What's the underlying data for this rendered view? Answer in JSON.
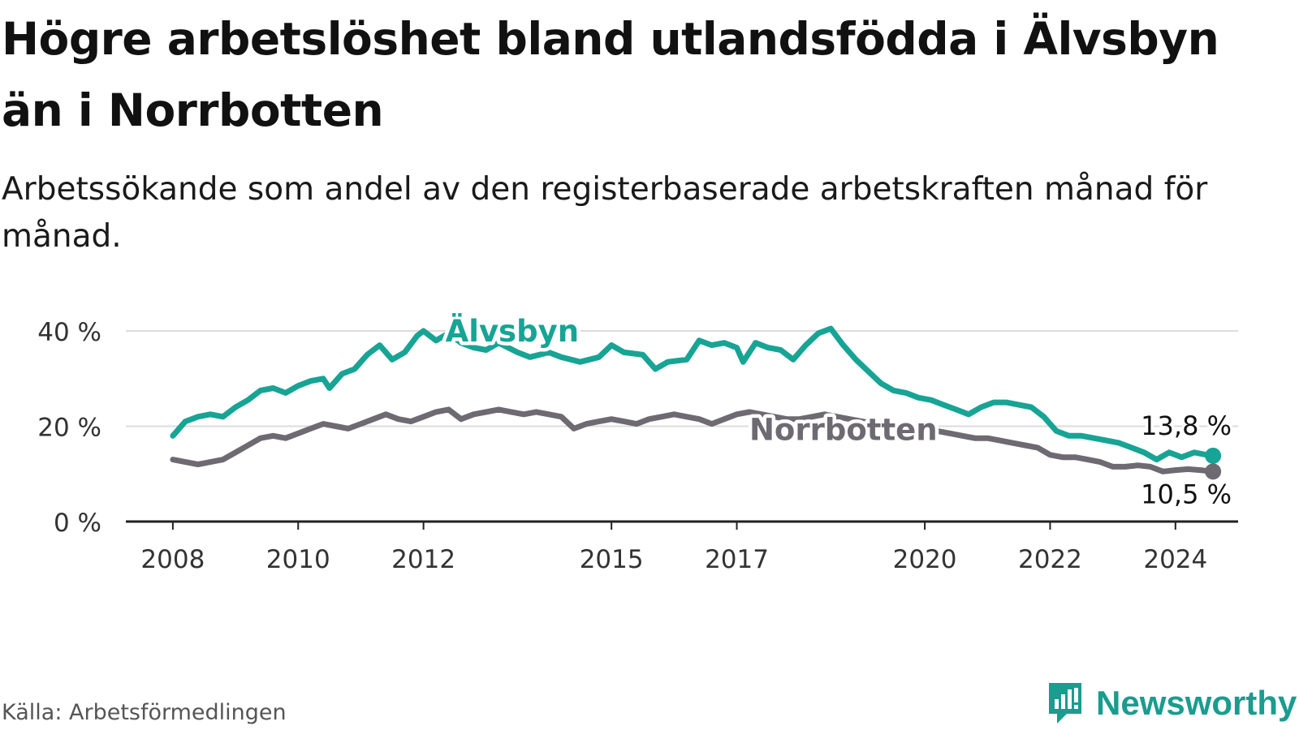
{
  "title": "Högre arbetslöshet bland utlandsfödda i Älvsbyn än i Norrbotten",
  "subtitle": "Arbetssökande som andel av den registerbaserade arbetskraften månad för månad.",
  "source": "Källa: Arbetsförmedlingen",
  "brand": "Newsworthy",
  "colors": {
    "alvsbyn": "#17a495",
    "norrbotten": "#6e6a72",
    "grid": "#dcdcdc",
    "axis": "#222222"
  },
  "chart_data": {
    "type": "line",
    "title": "Högre arbetslöshet bland utlandsfödda i Älvsbyn än i Norrbotten",
    "xlabel": "",
    "ylabel": "",
    "ylim": [
      0,
      40
    ],
    "xlim": [
      2007.25,
      2025.0
    ],
    "y_ticks": [
      0,
      20,
      40
    ],
    "y_tick_labels": [
      "0 %",
      "20 %",
      "40 %"
    ],
    "x_ticks": [
      2008,
      2010,
      2012,
      2015,
      2017,
      2020,
      2022,
      2024
    ],
    "x_tick_labels": [
      "2008",
      "2010",
      "2012",
      "2015",
      "2017",
      "2020",
      "2022",
      "2024"
    ],
    "grid": true,
    "series": [
      {
        "name": "Älvsbyn",
        "label": "Älvsbyn",
        "last_value_label": "13,8 %",
        "points": [
          [
            2008.0,
            18.0
          ],
          [
            2008.2,
            21.0
          ],
          [
            2008.4,
            22.0
          ],
          [
            2008.6,
            22.5
          ],
          [
            2008.8,
            22.0
          ],
          [
            2009.0,
            24.0
          ],
          [
            2009.2,
            25.5
          ],
          [
            2009.4,
            27.5
          ],
          [
            2009.6,
            28.0
          ],
          [
            2009.8,
            27.0
          ],
          [
            2010.0,
            28.5
          ],
          [
            2010.2,
            29.5
          ],
          [
            2010.4,
            30.0
          ],
          [
            2010.5,
            28.0
          ],
          [
            2010.7,
            31.0
          ],
          [
            2010.9,
            32.0
          ],
          [
            2011.1,
            35.0
          ],
          [
            2011.3,
            37.0
          ],
          [
            2011.5,
            34.0
          ],
          [
            2011.7,
            35.5
          ],
          [
            2011.9,
            39.0
          ],
          [
            2012.0,
            40.0
          ],
          [
            2012.2,
            38.0
          ],
          [
            2012.4,
            39.5
          ],
          [
            2012.6,
            37.5
          ],
          [
            2012.8,
            36.5
          ],
          [
            2013.0,
            36.0
          ],
          [
            2013.2,
            37.5
          ],
          [
            2013.5,
            35.5
          ],
          [
            2013.7,
            34.5
          ],
          [
            2014.0,
            35.5
          ],
          [
            2014.2,
            34.5
          ],
          [
            2014.5,
            33.5
          ],
          [
            2014.8,
            34.5
          ],
          [
            2015.0,
            37.0
          ],
          [
            2015.2,
            35.5
          ],
          [
            2015.5,
            35.0
          ],
          [
            2015.7,
            32.0
          ],
          [
            2015.9,
            33.5
          ],
          [
            2016.2,
            34.0
          ],
          [
            2016.4,
            38.0
          ],
          [
            2016.6,
            37.0
          ],
          [
            2016.8,
            37.5
          ],
          [
            2017.0,
            36.5
          ],
          [
            2017.1,
            33.5
          ],
          [
            2017.3,
            37.5
          ],
          [
            2017.5,
            36.5
          ],
          [
            2017.7,
            36.0
          ],
          [
            2017.9,
            34.0
          ],
          [
            2018.1,
            37.0
          ],
          [
            2018.3,
            39.5
          ],
          [
            2018.5,
            40.5
          ],
          [
            2018.7,
            37.0
          ],
          [
            2018.9,
            34.0
          ],
          [
            2019.1,
            31.5
          ],
          [
            2019.3,
            29.0
          ],
          [
            2019.5,
            27.5
          ],
          [
            2019.7,
            27.0
          ],
          [
            2019.9,
            26.0
          ],
          [
            2020.1,
            25.5
          ],
          [
            2020.3,
            24.5
          ],
          [
            2020.5,
            23.5
          ],
          [
            2020.7,
            22.5
          ],
          [
            2020.9,
            24.0
          ],
          [
            2021.1,
            25.0
          ],
          [
            2021.3,
            25.0
          ],
          [
            2021.5,
            24.5
          ],
          [
            2021.7,
            24.0
          ],
          [
            2021.9,
            22.0
          ],
          [
            2022.1,
            19.0
          ],
          [
            2022.3,
            18.0
          ],
          [
            2022.5,
            18.0
          ],
          [
            2022.7,
            17.5
          ],
          [
            2022.9,
            17.0
          ],
          [
            2023.1,
            16.5
          ],
          [
            2023.3,
            15.5
          ],
          [
            2023.5,
            14.5
          ],
          [
            2023.7,
            13.0
          ],
          [
            2023.9,
            14.5
          ],
          [
            2024.1,
            13.5
          ],
          [
            2024.3,
            14.5
          ],
          [
            2024.5,
            14.0
          ],
          [
            2024.6,
            13.8
          ]
        ]
      },
      {
        "name": "Norrbotten",
        "label": "Norrbotten",
        "last_value_label": "10,5 %",
        "points": [
          [
            2008.0,
            13.0
          ],
          [
            2008.2,
            12.5
          ],
          [
            2008.4,
            12.0
          ],
          [
            2008.6,
            12.5
          ],
          [
            2008.8,
            13.0
          ],
          [
            2009.0,
            14.5
          ],
          [
            2009.2,
            16.0
          ],
          [
            2009.4,
            17.5
          ],
          [
            2009.6,
            18.0
          ],
          [
            2009.8,
            17.5
          ],
          [
            2010.0,
            18.5
          ],
          [
            2010.2,
            19.5
          ],
          [
            2010.4,
            20.5
          ],
          [
            2010.6,
            20.0
          ],
          [
            2010.8,
            19.5
          ],
          [
            2011.0,
            20.5
          ],
          [
            2011.2,
            21.5
          ],
          [
            2011.4,
            22.5
          ],
          [
            2011.6,
            21.5
          ],
          [
            2011.8,
            21.0
          ],
          [
            2012.0,
            22.0
          ],
          [
            2012.2,
            23.0
          ],
          [
            2012.4,
            23.5
          ],
          [
            2012.6,
            21.5
          ],
          [
            2012.8,
            22.5
          ],
          [
            2013.0,
            23.0
          ],
          [
            2013.2,
            23.5
          ],
          [
            2013.4,
            23.0
          ],
          [
            2013.6,
            22.5
          ],
          [
            2013.8,
            23.0
          ],
          [
            2014.0,
            22.5
          ],
          [
            2014.2,
            22.0
          ],
          [
            2014.4,
            19.5
          ],
          [
            2014.6,
            20.5
          ],
          [
            2014.8,
            21.0
          ],
          [
            2015.0,
            21.5
          ],
          [
            2015.2,
            21.0
          ],
          [
            2015.4,
            20.5
          ],
          [
            2015.6,
            21.5
          ],
          [
            2015.8,
            22.0
          ],
          [
            2016.0,
            22.5
          ],
          [
            2016.2,
            22.0
          ],
          [
            2016.4,
            21.5
          ],
          [
            2016.6,
            20.5
          ],
          [
            2016.8,
            21.5
          ],
          [
            2017.0,
            22.5
          ],
          [
            2017.2,
            23.0
          ],
          [
            2017.4,
            22.5
          ],
          [
            2017.6,
            22.0
          ],
          [
            2017.8,
            21.5
          ],
          [
            2018.0,
            21.5
          ],
          [
            2018.2,
            22.0
          ],
          [
            2018.4,
            22.5
          ],
          [
            2018.6,
            22.0
          ],
          [
            2018.8,
            21.5
          ],
          [
            2019.0,
            21.0
          ],
          [
            2019.2,
            20.5
          ],
          [
            2019.4,
            20.0
          ],
          [
            2019.6,
            19.5
          ],
          [
            2019.8,
            19.0
          ],
          [
            2020.0,
            19.5
          ],
          [
            2020.2,
            19.0
          ],
          [
            2020.4,
            18.5
          ],
          [
            2020.6,
            18.0
          ],
          [
            2020.8,
            17.5
          ],
          [
            2021.0,
            17.5
          ],
          [
            2021.2,
            17.0
          ],
          [
            2021.4,
            16.5
          ],
          [
            2021.6,
            16.0
          ],
          [
            2021.8,
            15.5
          ],
          [
            2022.0,
            14.0
          ],
          [
            2022.2,
            13.5
          ],
          [
            2022.4,
            13.5
          ],
          [
            2022.6,
            13.0
          ],
          [
            2022.8,
            12.5
          ],
          [
            2023.0,
            11.5
          ],
          [
            2023.2,
            11.5
          ],
          [
            2023.4,
            11.8
          ],
          [
            2023.6,
            11.5
          ],
          [
            2023.8,
            10.5
          ],
          [
            2024.0,
            10.8
          ],
          [
            2024.2,
            11.0
          ],
          [
            2024.4,
            10.8
          ],
          [
            2024.6,
            10.5
          ]
        ]
      }
    ]
  }
}
